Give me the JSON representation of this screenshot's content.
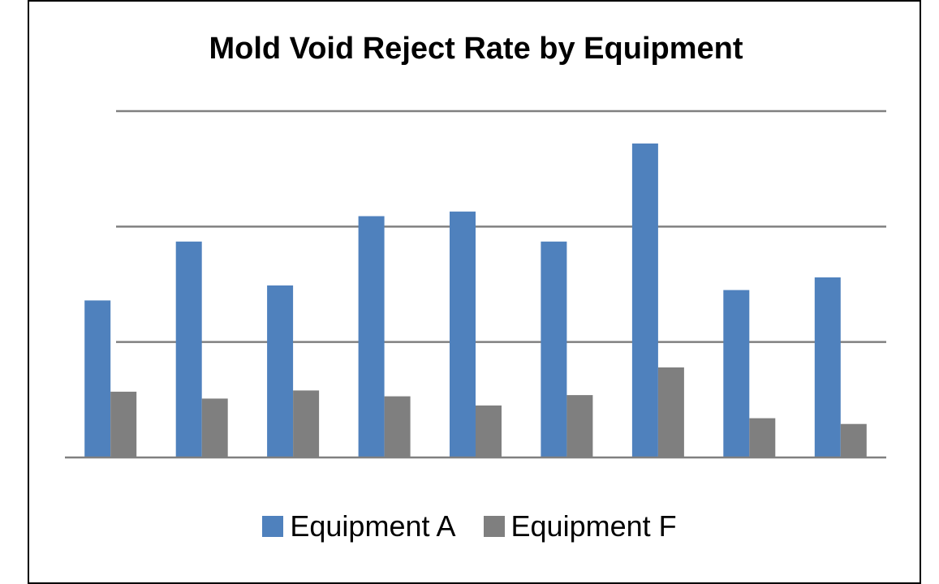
{
  "chart_data": {
    "type": "bar",
    "title": "Mold Void Reject Rate by Equipment",
    "xlabel": "",
    "ylabel": "",
    "categories": [
      "",
      "",
      "",
      "",
      "",
      "",
      "",
      "",
      ""
    ],
    "ylim": [
      0,
      3
    ],
    "grid": true,
    "legend": "bottom",
    "series": [
      {
        "name": "Equipment A",
        "color": "#4f81bd",
        "values": [
          1.36,
          1.87,
          1.49,
          2.09,
          2.13,
          1.87,
          2.72,
          1.45,
          1.56
        ]
      },
      {
        "name": "Equipment F",
        "color": "#7f7f7f",
        "values": [
          0.57,
          0.51,
          0.58,
          0.53,
          0.45,
          0.54,
          0.78,
          0.34,
          0.29
        ]
      }
    ]
  }
}
